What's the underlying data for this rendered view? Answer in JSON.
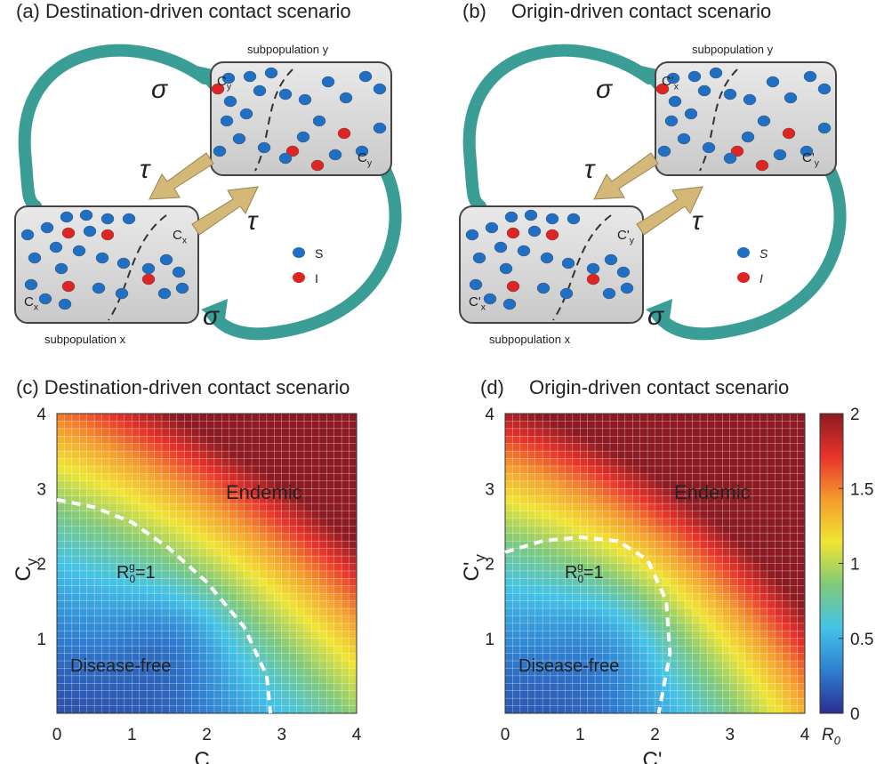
{
  "panels": [
    {
      "id": "a",
      "label": "(a)",
      "title": "Destination-driven contact scenario",
      "diagram": {
        "sub_top": "subpopulation y",
        "sub_bottom": "subpopulation x",
        "top_box_left_label": "C",
        "top_box_left_sub": "y",
        "top_box_right_label": "C",
        "top_box_right_sub": "y",
        "bottom_box_left_label": "C",
        "bottom_box_left_sub": "x",
        "bottom_box_right_label": "C",
        "bottom_box_right_sub": "x",
        "prime": false,
        "sigma": "σ",
        "tau": "τ",
        "legend": [
          {
            "label": "S",
            "color": "#1f6fc4"
          },
          {
            "label": "I",
            "color": "#e02323"
          }
        ]
      }
    },
    {
      "id": "b",
      "label": "(b)",
      "title": "Origin-driven contact scenario",
      "diagram": {
        "sub_top": "subpopulation y",
        "sub_bottom": "subpopulation x",
        "top_box_left_label": "C'",
        "top_box_left_sub": "x",
        "top_box_right_label": "C'",
        "top_box_right_sub": "y",
        "bottom_box_left_label": "C'",
        "bottom_box_left_sub": "x",
        "bottom_box_right_label": "C'",
        "bottom_box_right_sub": "y",
        "prime": true,
        "sigma": "σ",
        "tau": "τ",
        "legend": [
          {
            "label": "S",
            "color": "#1f6fc4"
          },
          {
            "label": "I",
            "color": "#e02323"
          }
        ]
      }
    }
  ],
  "heatmaps": [
    {
      "id": "c",
      "label": "(c)",
      "title": "Destination-driven contact scenario",
      "xlabel": "C",
      "xlabel_sub": "x",
      "ylabel": "C",
      "ylabel_sub": "y",
      "xticks": [
        "0",
        "1",
        "2",
        "3",
        "4"
      ],
      "yticks": [
        "1",
        "2",
        "3",
        "4"
      ],
      "region_endemic": "Endemic",
      "region_disease_free": "Disease-free",
      "threshold_label": "R",
      "threshold_sub": "0",
      "threshold_sup": "g",
      "threshold_eq": "=1"
    },
    {
      "id": "d",
      "label": "(d)",
      "title": "Origin-driven contact scenario",
      "xlabel": "C'",
      "xlabel_sub": "x",
      "ylabel": "C'",
      "ylabel_sub": "y",
      "xticks": [
        "0",
        "1",
        "2",
        "3",
        "4"
      ],
      "yticks": [
        "1",
        "2",
        "3",
        "4"
      ],
      "region_endemic": "Endemic",
      "region_disease_free": "Disease-free",
      "threshold_label": "R",
      "threshold_sub": "0",
      "threshold_sup": "g",
      "threshold_eq": "=1"
    }
  ],
  "colorbar": {
    "label": "R",
    "label_sub": "0",
    "ticks": [
      "0",
      "0.5",
      "1",
      "1.5",
      "2"
    ],
    "colors": [
      "#2b2e8f",
      "#2f7fd1",
      "#44c3e8",
      "#7fc97a",
      "#f0e532",
      "#f59a2e",
      "#e8332a",
      "#8c1a22"
    ]
  },
  "chart_data": [
    {
      "type": "heatmap",
      "title": "Destination-driven contact scenario",
      "xlabel": "Cx",
      "ylabel": "Cy",
      "xlim": [
        0,
        4
      ],
      "ylim": [
        0,
        4
      ],
      "value_label": "R0",
      "zlim": [
        0,
        2
      ],
      "threshold_curve": {
        "level": 1,
        "x": [
          0,
          0.5,
          1.0,
          1.5,
          2.0,
          2.5,
          2.8,
          2.85
        ],
        "y": [
          2.85,
          2.75,
          2.55,
          2.2,
          1.75,
          1.15,
          0.5,
          0
        ]
      }
    },
    {
      "type": "heatmap",
      "title": "Origin-driven contact scenario",
      "xlabel": "C'x",
      "ylabel": "C'y",
      "xlim": [
        0,
        4
      ],
      "ylim": [
        0,
        4
      ],
      "value_label": "R0",
      "zlim": [
        0,
        2
      ],
      "threshold_curve": {
        "level": 1,
        "x": [
          0,
          0.5,
          1.0,
          1.5,
          1.9,
          2.15,
          2.2,
          2.05
        ],
        "y": [
          2.15,
          2.3,
          2.35,
          2.3,
          2.05,
          1.5,
          0.8,
          0
        ]
      }
    }
  ]
}
